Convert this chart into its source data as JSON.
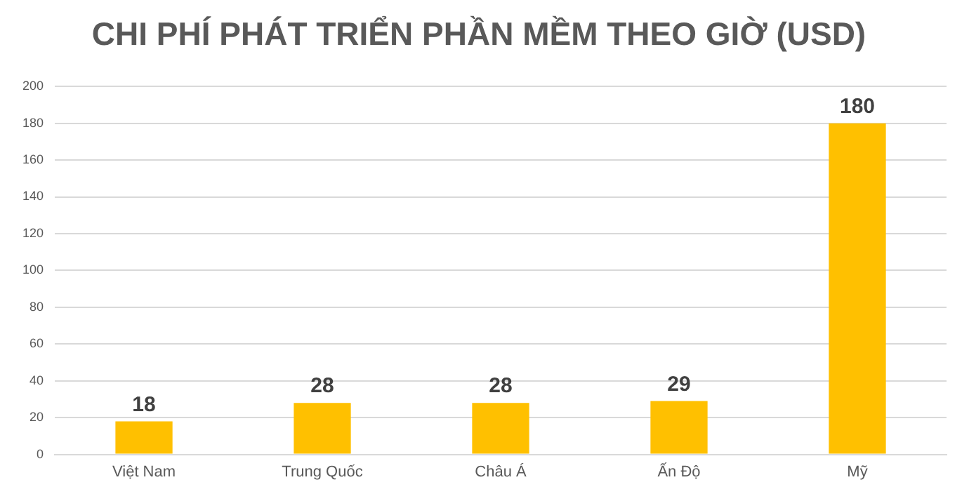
{
  "chart_data": {
    "type": "bar",
    "title": "CHI PHÍ PHÁT TRIỂN PHẦN MỀM THEO GIỜ (USD)",
    "categories": [
      "Việt Nam",
      "Trung Quốc",
      "Châu Á",
      "Ấn Độ",
      "Mỹ"
    ],
    "values": [
      18,
      28,
      28,
      29,
      180
    ],
    "color": "#ffc000",
    "ylim": [
      0,
      200
    ],
    "yticks": [
      0,
      20,
      40,
      60,
      80,
      100,
      120,
      140,
      160,
      180,
      200
    ],
    "grid": "y",
    "data_labels": true,
    "legend": false
  }
}
